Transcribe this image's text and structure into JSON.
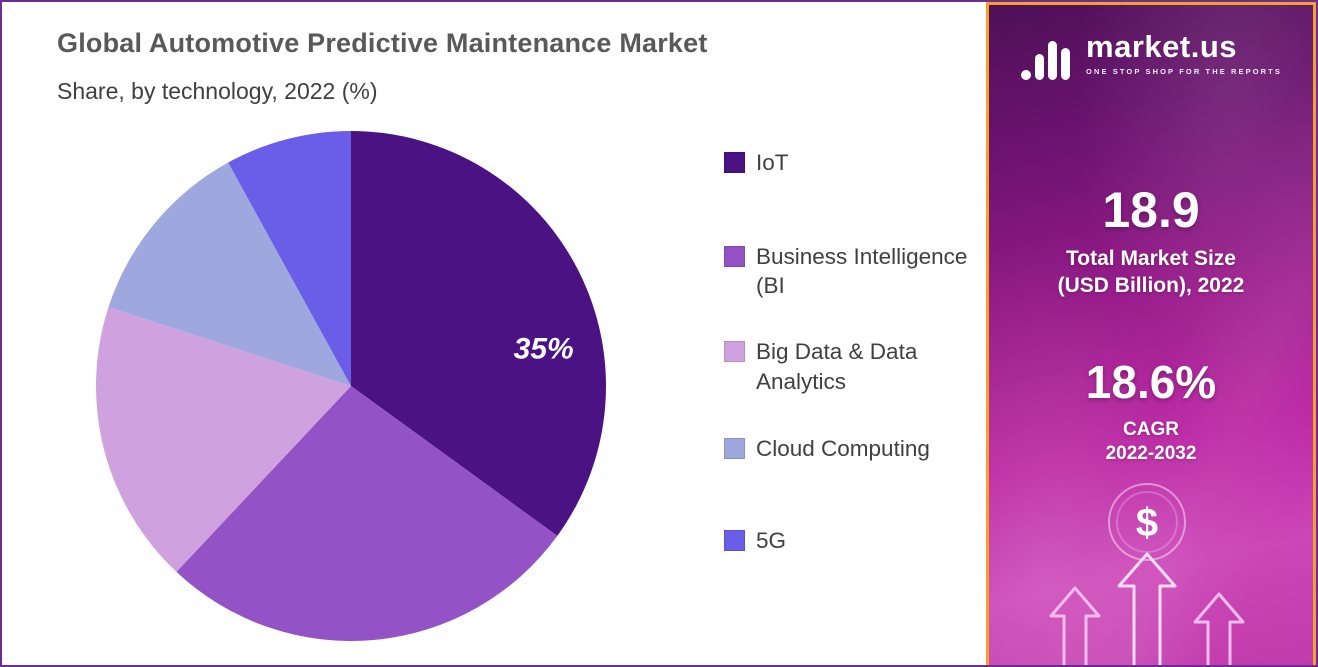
{
  "page": {
    "title": "Global Automotive Predictive Maintenance Market",
    "subtitle": "Share, by technology, 2022 (%)"
  },
  "chart_data": {
    "type": "pie",
    "title": "Global Automotive Predictive Maintenance Market",
    "subtitle": "Share, by technology, 2022 (%)",
    "unit": "%",
    "year": "2022",
    "start_angle_deg": 0,
    "direction": "clockwise",
    "legend_position": "right",
    "slices": [
      {
        "label": "IoT",
        "value": 35,
        "color": "#4B1283",
        "data_label": "35%",
        "label_angle_deg": 79,
        "label_radius_frac": 0.77
      },
      {
        "label": "Business Intelligence (BI",
        "value": 27,
        "color": "#9353C6",
        "data_label": ""
      },
      {
        "label": "Big Data & Data Analytics",
        "value": 18,
        "color": "#CFA2DF",
        "data_label": ""
      },
      {
        "label": "Cloud Computing",
        "value": 12,
        "color": "#9FA7DF",
        "data_label": ""
      },
      {
        "label": "5G",
        "value": 8,
        "color": "#6A5DE8",
        "data_label": ""
      }
    ]
  },
  "sidebar": {
    "logo_text": "market.us",
    "tagline": "ONE STOP SHOP FOR THE REPORTS",
    "stat1_value": "18.9",
    "stat1_label_line1": "Total Market Size",
    "stat1_label_line2": "(USD Billion), 2022",
    "stat2_value": "18.6%",
    "stat2_label_line1": "CAGR",
    "stat2_label_line2": "2022-2032",
    "dollar_sign": "$"
  }
}
